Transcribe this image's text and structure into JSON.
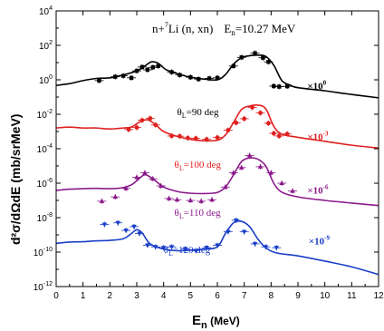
{
  "chart_data": {
    "type": "line",
    "title": "n+ 7Li (n, xn)  En=10.27 MeV",
    "title_parts": {
      "reaction_a": "n+",
      "mass": "7",
      "reaction_b": "Li (n, xn)",
      "energy_lead": "E",
      "energy_sub": "n",
      "energy_val": "=10.27 MeV"
    },
    "xlabel_main": "E",
    "xlabel_sub": "n",
    "xlabel_unit": " (MeV)",
    "ylabel": "d²σ/dΩdE  (mb/srMeV)",
    "xlim": [
      0,
      12
    ],
    "ylim_log10": [
      -12,
      4
    ],
    "y_scale": "log",
    "x_ticks": [
      "0",
      "1",
      "2",
      "3",
      "4",
      "5",
      "6",
      "7",
      "8",
      "9",
      "10",
      "11",
      "12"
    ],
    "y_tick_exponents": [
      "4",
      "2",
      "0",
      "-2",
      "-4",
      "-6",
      "-8",
      "-10",
      "-12"
    ],
    "y_tick_base": "10",
    "series": [
      {
        "name": "θL=90 deg",
        "angle_label": "θ",
        "angle_sub": "L",
        "angle_text": "=90 deg",
        "multiplier_base": "×10",
        "multiplier_exp": "0",
        "color": "#000000",
        "marker": "square",
        "curve": [
          [
            0,
            0.47
          ],
          [
            0.5,
            0.6
          ],
          [
            1,
            0.9
          ],
          [
            1.5,
            1.2
          ],
          [
            2,
            1.3
          ],
          [
            2.5,
            1.9
          ],
          [
            3,
            3.3
          ],
          [
            3.3,
            6.3
          ],
          [
            3.55,
            11
          ],
          [
            3.8,
            9
          ],
          [
            4.1,
            3.8
          ],
          [
            4.5,
            2.3
          ],
          [
            5,
            1.4
          ],
          [
            5.5,
            1.1
          ],
          [
            6,
            1.0
          ],
          [
            6.3,
            2.0
          ],
          [
            6.6,
            8
          ],
          [
            6.9,
            19
          ],
          [
            7.2,
            25
          ],
          [
            7.5,
            27
          ],
          [
            7.8,
            23
          ],
          [
            8.1,
            7
          ],
          [
            8.4,
            0.9
          ],
          [
            8.7,
            0.5
          ],
          [
            9,
            0.35
          ],
          [
            10,
            0.23
          ],
          [
            11,
            0.14
          ],
          [
            12,
            0.09
          ]
        ],
        "points": [
          [
            1.6,
            0.9
          ],
          [
            2.2,
            1.5
          ],
          [
            2.5,
            1.7
          ],
          [
            2.8,
            1.3
          ],
          [
            3.0,
            3.3
          ],
          [
            3.2,
            5.5
          ],
          [
            3.4,
            3.8
          ],
          [
            3.6,
            5.3
          ],
          [
            3.8,
            6.3
          ],
          [
            4.3,
            2.8
          ],
          [
            4.6,
            1.9
          ],
          [
            5.0,
            1.4
          ],
          [
            5.3,
            1.1
          ],
          [
            5.7,
            1.2
          ],
          [
            6.0,
            1.3
          ],
          [
            6.6,
            6.3
          ],
          [
            6.9,
            20
          ],
          [
            7.4,
            35
          ],
          [
            7.7,
            19
          ],
          [
            7.9,
            11
          ],
          [
            8.1,
            0.43
          ],
          [
            8.3,
            0.4
          ],
          [
            8.6,
            0.42
          ]
        ]
      },
      {
        "name": "θL=100 deg",
        "angle_label": "θ",
        "angle_sub": "L",
        "angle_text": "=100 deg",
        "multiplier_base": "×10",
        "multiplier_exp": "-3",
        "color": "#e02020",
        "marker": "circle",
        "curve": [
          [
            0,
            0.0016
          ],
          [
            0.5,
            0.0018
          ],
          [
            1,
            0.0016
          ],
          [
            1.5,
            0.0016
          ],
          [
            2,
            0.0014
          ],
          [
            2.5,
            0.0016
          ],
          [
            2.8,
            0.0018
          ],
          [
            3.1,
            0.0035
          ],
          [
            3.4,
            0.0048
          ],
          [
            3.7,
            0.0025
          ],
          [
            4.0,
            0.001
          ],
          [
            4.5,
            0.00052
          ],
          [
            5,
            0.00035
          ],
          [
            5.5,
            0.00029
          ],
          [
            6,
            0.00031
          ],
          [
            6.3,
            0.00063
          ],
          [
            6.6,
            0.0033
          ],
          [
            6.9,
            0.019
          ],
          [
            7.2,
            0.03
          ],
          [
            7.5,
            0.034
          ],
          [
            7.8,
            0.021
          ],
          [
            8.1,
            0.002
          ],
          [
            8.4,
            0.0007
          ],
          [
            9,
            0.00046
          ],
          [
            10,
            0.00027
          ],
          [
            11,
            0.00016
          ],
          [
            12,
            0.00011
          ]
        ],
        "points": [
          [
            2.7,
            0.0013
          ],
          [
            3.0,
            0.0017
          ],
          [
            3.2,
            0.0045
          ],
          [
            3.5,
            0.0058
          ],
          [
            3.7,
            0.0024
          ],
          [
            4.3,
            0.00055
          ],
          [
            4.6,
            0.00053
          ],
          [
            4.9,
            0.00042
          ],
          [
            5.2,
            0.0004
          ],
          [
            5.6,
            0.00035
          ],
          [
            6.0,
            0.00045
          ],
          [
            6.4,
            0.0012
          ],
          [
            6.7,
            0.0032
          ],
          [
            7.0,
            0.0055
          ],
          [
            7.3,
            0.025
          ],
          [
            7.6,
            0.012
          ],
          [
            7.9,
            0.003
          ],
          [
            8.1,
            0.00078
          ],
          [
            8.3,
            0.00055
          ],
          [
            8.6,
            0.00072
          ]
        ]
      },
      {
        "name": "θL=110 deg",
        "angle_label": "θ",
        "angle_sub": "L",
        "angle_text": "=110 deg",
        "multiplier_base": "×10",
        "multiplier_exp": "-6",
        "color": "#8b1a8b",
        "marker": "triangle",
        "curve": [
          [
            0,
            3.8e-07
          ],
          [
            0.5,
            4.5e-07
          ],
          [
            1,
            4.8e-07
          ],
          [
            1.5,
            5e-07
          ],
          [
            2,
            4.8e-07
          ],
          [
            2.5,
            5.5e-07
          ],
          [
            2.8,
            8e-07
          ],
          [
            3.05,
            1.6e-06
          ],
          [
            3.3,
            3.1e-06
          ],
          [
            3.6,
            1.8e-06
          ],
          [
            4.0,
            6e-07
          ],
          [
            4.5,
            3.3e-07
          ],
          [
            5,
            2.6e-07
          ],
          [
            5.5,
            2.5e-07
          ],
          [
            6,
            2.9e-07
          ],
          [
            6.3,
            6e-07
          ],
          [
            6.6,
            3e-06
          ],
          [
            6.9,
            1.8e-05
          ],
          [
            7.2,
            2.9e-05
          ],
          [
            7.5,
            2.5e-05
          ],
          [
            7.8,
            1e-05
          ],
          [
            8.1,
            1e-06
          ],
          [
            8.4,
            3e-07
          ],
          [
            9,
            1.6e-07
          ],
          [
            10,
            1e-07
          ],
          [
            11,
            7e-08
          ],
          [
            12,
            5e-08
          ]
        ],
        "points": [
          [
            1.7,
            9e-08
          ],
          [
            2.2,
            1.6e-07
          ],
          [
            2.6,
            5e-07
          ],
          [
            3.0,
            2.2e-06
          ],
          [
            3.3,
            4e-06
          ],
          [
            3.6,
            1.8e-06
          ],
          [
            3.9,
            7e-07
          ],
          [
            4.2,
            1.3e-07
          ],
          [
            4.5,
            1.1e-07
          ],
          [
            5.0,
            1e-07
          ],
          [
            5.4,
            9e-08
          ],
          [
            5.8,
            1.1e-07
          ],
          [
            6.3,
            6e-07
          ],
          [
            6.6,
            4e-06
          ],
          [
            6.9,
            8e-06
          ],
          [
            7.2,
            4e-05
          ],
          [
            7.6,
            9e-06
          ],
          [
            8.0,
            4e-06
          ],
          [
            8.4,
            1e-06
          ],
          [
            8.8,
            3.5e-07
          ]
        ]
      },
      {
        "name": "θL=120 deg",
        "angle_label": "θ",
        "angle_sub": "L",
        "angle_text": "=120 deg",
        "multiplier_base": "×10",
        "multiplier_exp": "-9",
        "color": "#1a3ec8",
        "marker": "triangle-down",
        "curve": [
          [
            0,
            3.2e-10
          ],
          [
            0.5,
            3.8e-10
          ],
          [
            1,
            4e-10
          ],
          [
            1.5,
            4.5e-10
          ],
          [
            2,
            4.8e-10
          ],
          [
            2.5,
            6e-10
          ],
          [
            2.8,
            1.2e-09
          ],
          [
            3.0,
            2e-09
          ],
          [
            3.2,
            1.3e-09
          ],
          [
            3.5,
            3e-10
          ],
          [
            4,
            1.5e-10
          ],
          [
            4.5,
            1.2e-10
          ],
          [
            5,
            1.3e-10
          ],
          [
            5.5,
            1.5e-10
          ],
          [
            6,
            2e-10
          ],
          [
            6.3,
            1.2e-09
          ],
          [
            6.6,
            5e-09
          ],
          [
            6.9,
            6e-09
          ],
          [
            7.2,
            3e-09
          ],
          [
            7.5,
            6e-10
          ],
          [
            7.8,
            1.8e-10
          ],
          [
            8.2,
            9e-11
          ],
          [
            9,
            6e-11
          ],
          [
            10,
            3e-11
          ],
          [
            11,
            1.4e-11
          ],
          [
            12,
            5e-12
          ]
        ],
        "points": [
          [
            1.8,
            4e-09
          ],
          [
            2.3,
            5e-09
          ],
          [
            2.6,
            1.8e-09
          ],
          [
            2.9,
            3e-09
          ],
          [
            3.1,
            1.2e-09
          ],
          [
            3.4,
            2.5e-10
          ],
          [
            3.7,
            2e-10
          ],
          [
            4.0,
            1.8e-10
          ],
          [
            4.3,
            2e-10
          ],
          [
            4.8,
            1.5e-10
          ],
          [
            5.2,
            1.2e-10
          ],
          [
            5.6,
            1.8e-10
          ],
          [
            6.0,
            2.5e-10
          ],
          [
            6.4,
            1.5e-09
          ],
          [
            6.7,
            7e-09
          ],
          [
            7.0,
            1.5e-09
          ],
          [
            7.4,
            3e-10
          ],
          [
            7.8,
            2e-10
          ],
          [
            8.2,
            1.8e-10
          ]
        ]
      }
    ]
  }
}
